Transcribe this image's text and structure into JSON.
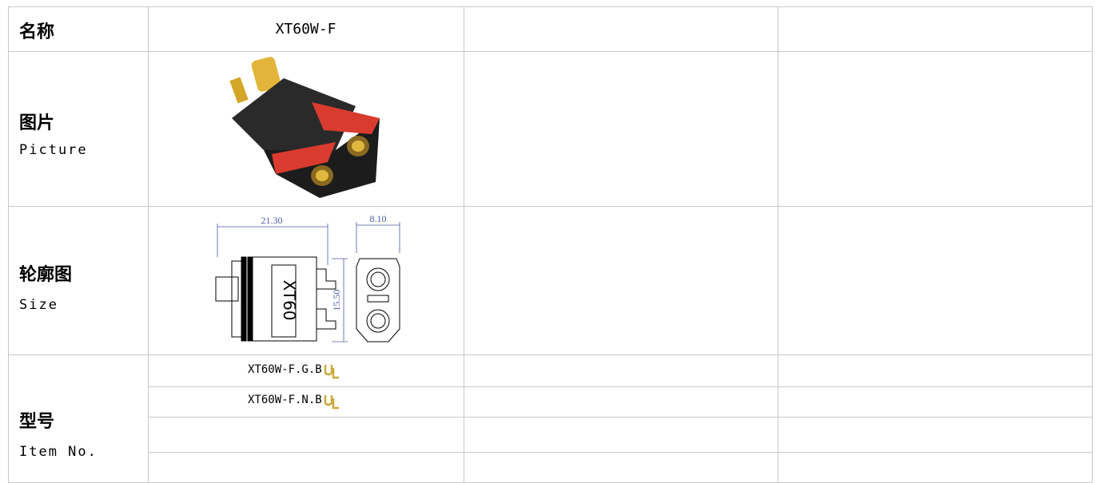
{
  "table": {
    "rows": [
      {
        "label": "名称",
        "value": "XT60W-F"
      },
      {
        "label": "图片",
        "sublabel": "Picture"
      },
      {
        "label": "轮廓图",
        "sublabel": "Size",
        "dimensions": [
          "21.30",
          "8.10",
          "15.50"
        ],
        "marking": "XT60"
      },
      {
        "label": "型号",
        "sublabel": "Item No.",
        "items": [
          "XT60W-F.G.B",
          "XT60W-F.N.B"
        ]
      }
    ]
  }
}
